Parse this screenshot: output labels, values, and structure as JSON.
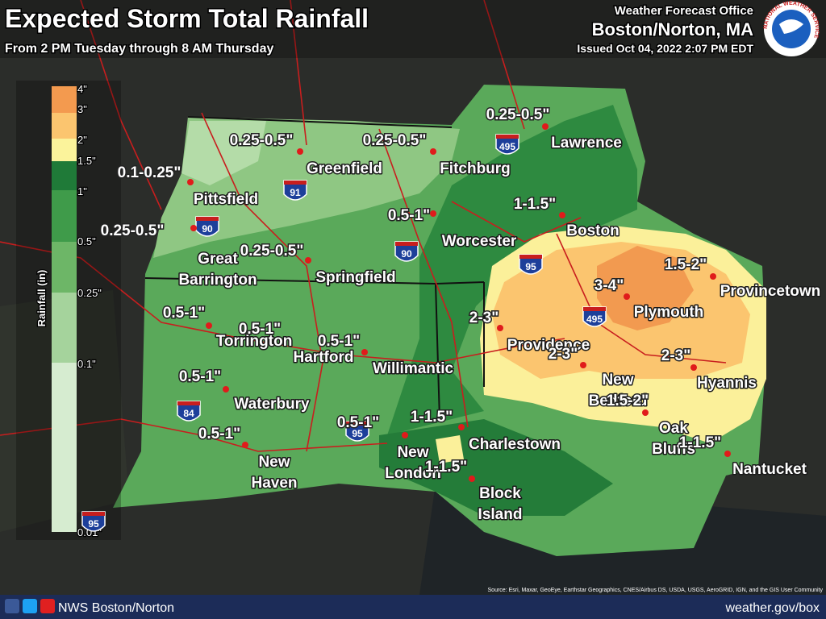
{
  "header": {
    "title": "Expected Storm Total Rainfall",
    "subtitle": "From 2 PM Tuesday through 8 AM Thursday",
    "office_line1": "Weather Forecast Office",
    "office_line2": "Boston/Norton, MA",
    "issued": "Issued Oct 04, 2022 2:07 PM EDT",
    "logo_text": "NATIONAL WEATHER SERVICE"
  },
  "legend": {
    "title": "Rainfall (in)",
    "ticks": [
      "4\"",
      "3\"",
      "2\"",
      "1.5\"",
      "1\"",
      "0.5\"",
      "0.25\"",
      "0.1\"",
      "0.01\""
    ],
    "colors": [
      "#f39a4f",
      "#fbc56f",
      "#fbf39b",
      "#1f7a38",
      "#3f9b4a",
      "#6db667",
      "#a5d39c",
      "#d6ecd0"
    ]
  },
  "amounts": [
    "0.25-0.5\"",
    "0.25-0.5\"",
    "0.25-0.5\"",
    "0.1-0.25\"",
    "0.25-0.5\"",
    "0.5-1\"",
    "1-1.5\"",
    "0.25-0.5\"",
    "1.5-2\"",
    "3-4\"",
    "0.5-1\"",
    "0.5-1\"",
    "0.5-1\"",
    "2-3\"",
    "2-3\"",
    "2-3\"",
    "0.5-1\"",
    "1-1.5\"",
    "0.5-1\"",
    "1.5-2\"",
    "0.5-1\"",
    "1-1.5\"",
    "1-1.5\""
  ],
  "cities": [
    [
      "Lawrence"
    ],
    [
      "Fitchburg"
    ],
    [
      "Greenfield"
    ],
    [
      "Pittsfield"
    ],
    [
      "Worcester"
    ],
    [
      "Boston"
    ],
    [
      "Great",
      "Barrington"
    ],
    [
      "Springfield"
    ],
    [
      "Provincetown"
    ],
    [
      "Plymouth"
    ],
    [
      "Torrington"
    ],
    [
      "Hartford"
    ],
    [
      "Willimantic"
    ],
    [
      "Providence"
    ],
    [
      "New",
      "Bedford"
    ],
    [
      "Hyannis"
    ],
    [
      "Waterbury"
    ],
    [
      "Charlestown"
    ],
    [
      "Oak",
      "Bluffs"
    ],
    [
      "New",
      "Haven"
    ],
    [
      "New",
      "London"
    ],
    [
      "Nantucket"
    ],
    [
      "Block",
      "Island"
    ]
  ],
  "shields": [
    "495",
    "91",
    "90",
    "90",
    "95",
    "495",
    "84",
    "95",
    "95"
  ],
  "footer": {
    "social": "NWS Boston/Norton",
    "url": "weather.gov/box",
    "credit": "Source: Esri, Maxar, GeoEye, Earthstar Geographics, CNES/Airbus DS, USDA, USGS, AeroGRID, IGN, and the GIS User Community"
  }
}
